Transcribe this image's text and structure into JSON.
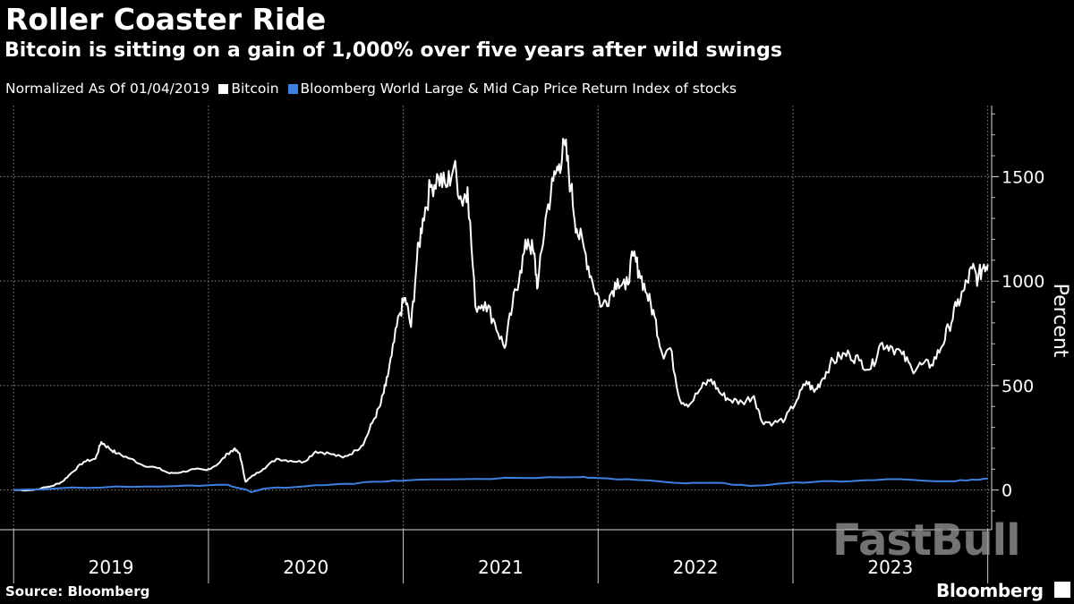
{
  "header": {
    "title": "Roller Coaster Ride",
    "subtitle": "Bitcoin is sitting on a gain of 1,000% over five years after wild swings"
  },
  "legend": {
    "prefix": "Normalized As Of 01/04/2019",
    "items": [
      {
        "label": "Bitcoin",
        "color": "#ffffff"
      },
      {
        "label": "Bloomberg World Large & Mid Cap Price Return Index of stocks",
        "color": "#3f7fe0"
      }
    ]
  },
  "footer": {
    "source": "Source: Bloomberg",
    "brand": "Bloomberg",
    "watermark": "FastBull"
  },
  "chart_data": {
    "type": "line",
    "ylabel": "Percent",
    "ylim": [
      -190,
      1840
    ],
    "yticks": [
      0,
      500,
      1000,
      1500
    ],
    "xlim": [
      2018.93,
      2024.02
    ],
    "year_labels": [
      "2019",
      "2020",
      "2021",
      "2022",
      "2023"
    ],
    "grid": true,
    "series": [
      {
        "name": "Bitcoin",
        "color": "#ffffff",
        "points": [
          [
            2019.0,
            0
          ],
          [
            2019.1,
            0
          ],
          [
            2019.2,
            20
          ],
          [
            2019.25,
            40
          ],
          [
            2019.3,
            85
          ],
          [
            2019.36,
            135
          ],
          [
            2019.42,
            150
          ],
          [
            2019.45,
            230
          ],
          [
            2019.49,
            200
          ],
          [
            2019.53,
            175
          ],
          [
            2019.6,
            150
          ],
          [
            2019.66,
            120
          ],
          [
            2019.74,
            105
          ],
          [
            2019.8,
            80
          ],
          [
            2019.86,
            85
          ],
          [
            2019.93,
            100
          ],
          [
            2019.99,
            95
          ],
          [
            2020.05,
            125
          ],
          [
            2020.1,
            175
          ],
          [
            2020.13,
            195
          ],
          [
            2020.16,
            175
          ],
          [
            2020.19,
            40
          ],
          [
            2020.23,
            70
          ],
          [
            2020.28,
            100
          ],
          [
            2020.35,
            150
          ],
          [
            2020.42,
            140
          ],
          [
            2020.49,
            135
          ],
          [
            2020.55,
            185
          ],
          [
            2020.62,
            175
          ],
          [
            2020.69,
            155
          ],
          [
            2020.76,
            190
          ],
          [
            2020.8,
            230
          ],
          [
            2020.84,
            320
          ],
          [
            2020.88,
            400
          ],
          [
            2020.91,
            500
          ],
          [
            2020.94,
            640
          ],
          [
            2020.98,
            840
          ],
          [
            2021.01,
            920
          ],
          [
            2021.04,
            780
          ],
          [
            2021.07,
            1100
          ],
          [
            2021.1,
            1300
          ],
          [
            2021.14,
            1450
          ],
          [
            2021.18,
            1500
          ],
          [
            2021.22,
            1450
          ],
          [
            2021.26,
            1550
          ],
          [
            2021.3,
            1380
          ],
          [
            2021.33,
            1450
          ],
          [
            2021.37,
            880
          ],
          [
            2021.42,
            900
          ],
          [
            2021.47,
            800
          ],
          [
            2021.52,
            680
          ],
          [
            2021.56,
            880
          ],
          [
            2021.6,
            1050
          ],
          [
            2021.64,
            1200
          ],
          [
            2021.67,
            1130
          ],
          [
            2021.69,
            970
          ],
          [
            2021.73,
            1300
          ],
          [
            2021.77,
            1480
          ],
          [
            2021.8,
            1560
          ],
          [
            2021.83,
            1650
          ],
          [
            2021.86,
            1450
          ],
          [
            2021.89,
            1250
          ],
          [
            2021.93,
            1150
          ],
          [
            2021.97,
            1000
          ],
          [
            2022.02,
            880
          ],
          [
            2022.06,
            930
          ],
          [
            2022.1,
            1010
          ],
          [
            2022.14,
            960
          ],
          [
            2022.18,
            1120
          ],
          [
            2022.21,
            1050
          ],
          [
            2022.25,
            940
          ],
          [
            2022.29,
            830
          ],
          [
            2022.33,
            650
          ],
          [
            2022.37,
            680
          ],
          [
            2022.42,
            430
          ],
          [
            2022.47,
            410
          ],
          [
            2022.53,
            490
          ],
          [
            2022.58,
            530
          ],
          [
            2022.63,
            460
          ],
          [
            2022.68,
            430
          ],
          [
            2022.74,
            420
          ],
          [
            2022.8,
            450
          ],
          [
            2022.84,
            330
          ],
          [
            2022.9,
            320
          ],
          [
            2022.96,
            340
          ],
          [
            2023.02,
            430
          ],
          [
            2023.07,
            520
          ],
          [
            2023.11,
            470
          ],
          [
            2023.15,
            530
          ],
          [
            2023.19,
            600
          ],
          [
            2023.24,
            640
          ],
          [
            2023.29,
            650
          ],
          [
            2023.34,
            620
          ],
          [
            2023.4,
            580
          ],
          [
            2023.45,
            700
          ],
          [
            2023.5,
            690
          ],
          [
            2023.56,
            650
          ],
          [
            2023.61,
            580
          ],
          [
            2023.66,
            600
          ],
          [
            2023.71,
            600
          ],
          [
            2023.76,
            680
          ],
          [
            2023.8,
            780
          ],
          [
            2023.84,
            880
          ],
          [
            2023.88,
            960
          ],
          [
            2023.92,
            1060
          ],
          [
            2023.95,
            1010
          ],
          [
            2023.98,
            1080
          ],
          [
            2024.0,
            1080
          ]
        ]
      },
      {
        "name": "Bloomberg World Large & Mid Cap Price Return Index of stocks",
        "color": "#3f7fe0",
        "points": [
          [
            2019.0,
            0
          ],
          [
            2019.3,
            12
          ],
          [
            2019.6,
            15
          ],
          [
            2019.9,
            22
          ],
          [
            2020.1,
            25
          ],
          [
            2020.18,
            5
          ],
          [
            2020.22,
            -10
          ],
          [
            2020.3,
            8
          ],
          [
            2020.5,
            18
          ],
          [
            2020.7,
            30
          ],
          [
            2020.9,
            40
          ],
          [
            2021.0,
            45
          ],
          [
            2021.3,
            52
          ],
          [
            2021.6,
            58
          ],
          [
            2021.9,
            62
          ],
          [
            2022.0,
            57
          ],
          [
            2022.2,
            48
          ],
          [
            2022.45,
            32
          ],
          [
            2022.6,
            35
          ],
          [
            2022.78,
            20
          ],
          [
            2022.92,
            30
          ],
          [
            2023.1,
            38
          ],
          [
            2023.3,
            42
          ],
          [
            2023.55,
            52
          ],
          [
            2023.8,
            42
          ],
          [
            2023.92,
            50
          ],
          [
            2024.0,
            55
          ]
        ]
      }
    ]
  }
}
